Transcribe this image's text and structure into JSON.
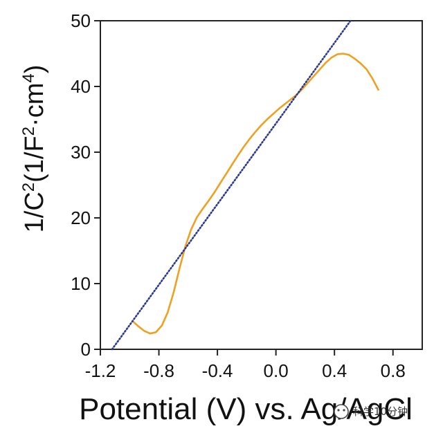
{
  "chart_data": {
    "type": "line",
    "title": "",
    "xlabel": "Potential (V) vs. Ag/AgCl",
    "ylabel_parts": {
      "base": "1/C",
      "sup1": "2",
      "mid": "(1/F",
      "sup2": "2",
      "mid2": "·cm",
      "sup3": "4",
      "end": ")"
    },
    "xlim": [
      -1.2,
      1.0
    ],
    "ylim": [
      0,
      50
    ],
    "xticks": [
      -1.2,
      -0.8,
      -0.4,
      0.0,
      0.4,
      0.8
    ],
    "xtick_labels": [
      "-1.2",
      "-0.8",
      "-0.4",
      "0.0",
      "0.4",
      "0.8"
    ],
    "yticks": [
      0,
      10,
      20,
      30,
      40,
      50
    ],
    "ytick_labels": [
      "0",
      "10",
      "20",
      "30",
      "40",
      "50"
    ],
    "grid": false,
    "legend": "none",
    "series": [
      {
        "color": "#F0A020",
        "style": "solid",
        "x": [
          -0.98,
          -0.94,
          -0.9,
          -0.86,
          -0.82,
          -0.78,
          -0.74,
          -0.7,
          -0.66,
          -0.62,
          -0.58,
          -0.54,
          -0.5,
          -0.46,
          -0.42,
          -0.38,
          -0.34,
          -0.3,
          -0.26,
          -0.22,
          -0.18,
          -0.14,
          -0.1,
          -0.06,
          -0.02,
          0.02,
          0.06,
          0.1,
          0.14,
          0.18,
          0.22,
          0.26,
          0.3,
          0.34,
          0.38,
          0.42,
          0.46,
          0.5,
          0.54,
          0.58,
          0.62,
          0.66,
          0.7
        ],
        "y": [
          4.3,
          3.5,
          2.8,
          2.4,
          2.6,
          3.6,
          5.6,
          8.6,
          12.2,
          15.6,
          18.2,
          20.1,
          21.4,
          22.6,
          23.9,
          25.3,
          26.7,
          28.1,
          29.5,
          30.8,
          32.0,
          33.1,
          34.1,
          35.0,
          35.8,
          36.6,
          37.3,
          38.0,
          38.7,
          39.6,
          40.6,
          41.6,
          42.6,
          43.6,
          44.4,
          44.9,
          45.0,
          44.8,
          44.2,
          43.5,
          42.6,
          41.2,
          39.5
        ]
      },
      {
        "color": "#2A3A8F",
        "style": "dotted",
        "x": [
          -1.12,
          0.51
        ],
        "y": [
          0,
          50
        ]
      }
    ]
  },
  "watermark": {
    "text": "科学10分钟"
  }
}
